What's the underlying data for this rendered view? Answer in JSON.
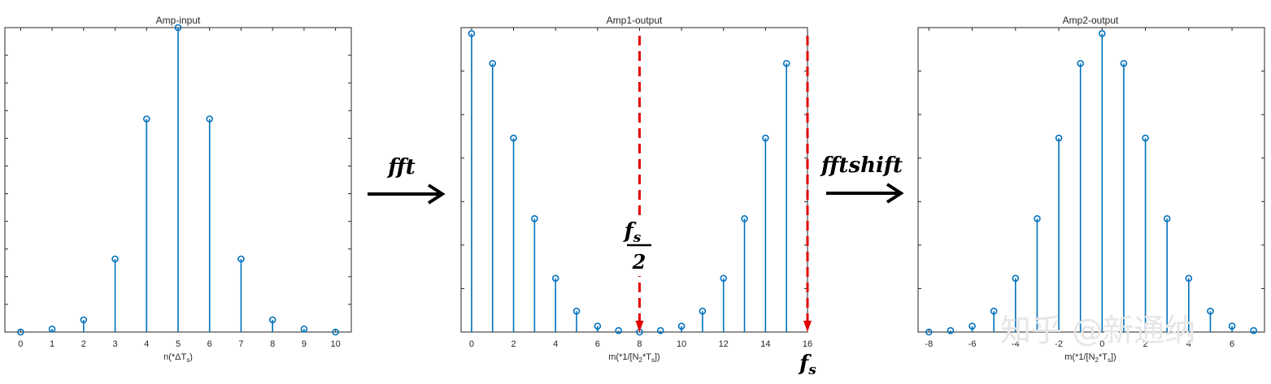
{
  "chart_data": [
    {
      "type": "stem",
      "title": "Amp-input",
      "xlabel": {
        "base": "n(*ΔT",
        "sub": "s",
        "end": ")"
      },
      "x": [
        0,
        1,
        2,
        3,
        4,
        5,
        6,
        7,
        8,
        9,
        10
      ],
      "values": [
        0.0,
        0.01,
        0.04,
        0.24,
        0.7,
        1.0,
        0.7,
        0.24,
        0.04,
        0.01,
        0.0
      ],
      "xticks": [
        "0",
        "1",
        "2",
        "3",
        "4",
        "5",
        "6",
        "7",
        "8",
        "9",
        "10"
      ],
      "xlim": [
        -0.5,
        10.5
      ],
      "ylim": [
        0,
        1
      ],
      "color": "#0072BD"
    },
    {
      "type": "stem",
      "title": "Amp1-output",
      "xlabel": {
        "base": "m(*1/[N",
        "sub": "2",
        "mid": "*T",
        "sub2": "s",
        "end": "])"
      },
      "x": [
        0,
        1,
        2,
        3,
        4,
        5,
        6,
        7,
        8,
        9,
        10,
        11,
        12,
        13,
        14,
        15
      ],
      "values": [
        1.0,
        0.9,
        0.65,
        0.38,
        0.18,
        0.07,
        0.02,
        0.005,
        0.0,
        0.005,
        0.02,
        0.07,
        0.18,
        0.38,
        0.65,
        0.9
      ],
      "xticks": [
        "0",
        "2",
        "4",
        "6",
        "8",
        "10",
        "12",
        "14",
        "16"
      ],
      "xlim": [
        -0.5,
        16
      ],
      "ylim": [
        0,
        1.02
      ],
      "color": "#0072BD",
      "markers": [
        {
          "label_num": "f",
          "label_sub": "s",
          "label_den": "2",
          "x": 8
        },
        {
          "label": "f",
          "label_sub": "s",
          "x": 16
        }
      ],
      "marker_color": "#E00000"
    },
    {
      "type": "stem",
      "title": "Amp2-output",
      "xlabel": {
        "base": "m(*1/[N",
        "sub": "2",
        "mid": "*T",
        "sub2": "s",
        "end": "])"
      },
      "x": [
        -8,
        -7,
        -6,
        -5,
        -4,
        -3,
        -2,
        -1,
        0,
        1,
        2,
        3,
        4,
        5,
        6,
        7
      ],
      "values": [
        0.0,
        0.005,
        0.02,
        0.07,
        0.18,
        0.38,
        0.65,
        0.9,
        1.0,
        0.9,
        0.65,
        0.38,
        0.18,
        0.07,
        0.02,
        0.005
      ],
      "xticks": [
        "-8",
        "-6",
        "-4",
        "-2",
        "0",
        "2",
        "4",
        "6"
      ],
      "xlim": [
        -8.5,
        7.5
      ],
      "ylim": [
        0,
        1.02
      ],
      "color": "#0072BD"
    }
  ],
  "arrows": [
    {
      "label": "fft"
    },
    {
      "label": "fftshift"
    }
  ],
  "watermark": "知乎 @新通纳"
}
